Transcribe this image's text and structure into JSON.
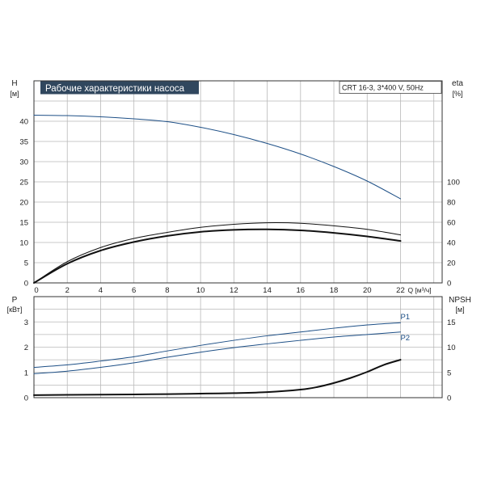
{
  "chart_data": [
    {
      "type": "line",
      "title": "Рабочие характеристики насоса",
      "model_label": "CRT 16-3, 3*400 V, 50Hz",
      "y_label_left": "H",
      "y_unit_left": "[м]",
      "y_label_right": "eta",
      "y_unit_right": "[%]",
      "x_label": "Q [м³/ч]",
      "xlim": [
        0,
        24.5
      ],
      "ylim_left": [
        0,
        50
      ],
      "ylim_right": [
        0,
        200
      ],
      "x_ticks": [
        "0",
        "2",
        "4",
        "6",
        "8",
        "10",
        "12",
        "14",
        "16",
        "18",
        "20",
        "22"
      ],
      "y_ticks_left": [
        "0",
        "5",
        "10",
        "15",
        "20",
        "25",
        "30",
        "35",
        "40"
      ],
      "y_ticks_right": [
        "0",
        "20",
        "40",
        "60",
        "80",
        "100"
      ],
      "grid": true,
      "series": [
        {
          "axis": "left",
          "color": "#1d4f86",
          "x": [
            0,
            2,
            4,
            6,
            8,
            10,
            12,
            14,
            16,
            18,
            20,
            22
          ],
          "values": [
            41.5,
            41.4,
            41.1,
            40.6,
            39.9,
            38.5,
            36.7,
            34.5,
            31.9,
            28.8,
            25.2,
            20.8
          ]
        },
        {
          "axis": "right",
          "color": "#111111",
          "x": [
            0,
            2,
            4,
            6,
            8,
            10,
            12,
            14,
            16,
            18,
            20,
            22
          ],
          "values": [
            0,
            21,
            35,
            44,
            50,
            55,
            58,
            59.5,
            59,
            56.5,
            53,
            47.5
          ]
        },
        {
          "axis": "right",
          "color": "#111111",
          "bold": true,
          "x": [
            0,
            2,
            4,
            6,
            8,
            10,
            12,
            14,
            16,
            18,
            20,
            22
          ],
          "values": [
            0,
            19,
            32,
            40.5,
            46.5,
            50.5,
            52.5,
            53,
            52,
            49.5,
            46,
            41.5
          ]
        }
      ]
    },
    {
      "type": "line",
      "y_label_left": "P",
      "y_unit_left": "[кВт]",
      "y_label_right": "NPSH",
      "y_unit_right": "[м]",
      "xlim": [
        0,
        24.5
      ],
      "ylim_left": [
        0,
        4
      ],
      "ylim_right": [
        0,
        20
      ],
      "y_ticks_left": [
        "0",
        "1",
        "2",
        "3"
      ],
      "y_ticks_right": [
        "0",
        "5",
        "10",
        "15"
      ],
      "grid": true,
      "series": [
        {
          "name": "P1",
          "axis": "left",
          "color": "#1d4f86",
          "x": [
            0,
            2,
            4,
            6,
            8,
            10,
            12,
            14,
            16,
            18,
            20,
            22
          ],
          "values": [
            1.2,
            1.3,
            1.45,
            1.62,
            1.85,
            2.07,
            2.27,
            2.45,
            2.6,
            2.75,
            2.88,
            2.97
          ]
        },
        {
          "name": "P2",
          "axis": "left",
          "color": "#1d4f86",
          "x": [
            0,
            2,
            4,
            6,
            8,
            10,
            12,
            14,
            16,
            18,
            20,
            22
          ],
          "values": [
            0.95,
            1.05,
            1.2,
            1.38,
            1.6,
            1.8,
            1.98,
            2.13,
            2.27,
            2.4,
            2.5,
            2.6
          ]
        },
        {
          "axis": "right",
          "color": "#111111",
          "bold": true,
          "x": [
            0,
            2,
            4,
            6,
            8,
            10,
            12,
            14,
            16,
            17,
            18,
            19,
            20,
            21,
            22
          ],
          "values": [
            0.5,
            0.55,
            0.6,
            0.65,
            0.7,
            0.8,
            0.9,
            1.1,
            1.6,
            2.1,
            2.9,
            3.9,
            5.1,
            6.5,
            7.5
          ]
        }
      ]
    }
  ]
}
